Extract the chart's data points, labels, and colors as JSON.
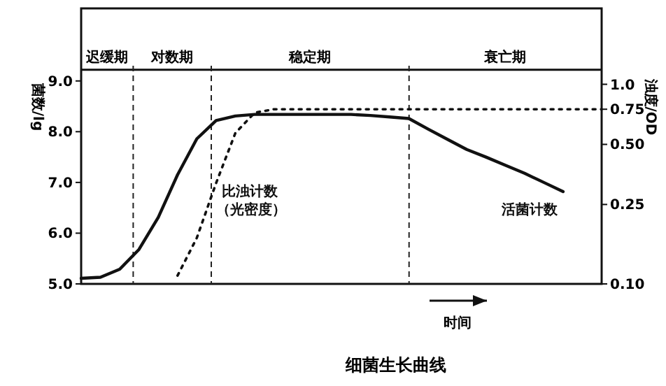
{
  "chart_data": {
    "type": "line",
    "title": "细菌生长曲线",
    "xlabel": "时间",
    "ylabel": "菌数/lg",
    "y2label": "浊度/OD",
    "categories": [
      null,
      null,
      null,
      null,
      null,
      null,
      null,
      null,
      null,
      null,
      null,
      null,
      null,
      null,
      null,
      null,
      null,
      null,
      null,
      null,
      null,
      null,
      null,
      null,
      null,
      null,
      null,
      null
    ],
    "ylim": [
      5,
      10.43
    ],
    "yticks": [
      {
        "value": 5,
        "label": "5.0"
      },
      {
        "value": 6,
        "label": "6.0"
      },
      {
        "value": 7,
        "label": "7.0"
      },
      {
        "value": 8,
        "label": "8.0"
      },
      {
        "value": 9,
        "label": "9.0"
      }
    ],
    "y2lim": [
      0.1,
      2.4
    ],
    "y2ticks": [
      {
        "value": 0.1,
        "label": "0.10"
      },
      {
        "value": 0.25,
        "label": "0.25"
      },
      {
        "value": 0.5,
        "label": "0.50"
      },
      {
        "value": 0.75,
        "label": "0.75"
      },
      {
        "value": 1,
        "label": "1.0"
      }
    ],
    "ref_lines": [
      {
        "axis": "y",
        "value": 9.22,
        "color": "#111111",
        "line_style": "solid"
      }
    ],
    "log": "y2",
    "grid": false,
    "marker": "none",
    "annotations": [
      "迟缓期",
      "对数期",
      "稳定期",
      "衰亡期"
    ],
    "series": [
      {
        "name": "活菌计数",
        "color": "#111111",
        "line_style": "solid",
        "values": [
          5.11,
          5.13,
          5.29,
          5.68,
          6.31,
          7.15,
          7.86,
          8.22,
          8.31,
          8.34,
          8.34,
          8.34,
          8.34,
          8.34,
          8.34,
          8.32,
          8.29,
          8.26,
          8.05,
          7.85,
          7.65,
          7.5,
          7.34,
          7.18,
          7.0,
          6.82,
          null,
          null
        ]
      },
      {
        "name": "比浊计数（光密度）",
        "color": "#111111",
        "line_style": "dotted",
        "axis": "y2",
        "values": [
          null,
          null,
          null,
          null,
          null,
          0.11,
          0.17,
          0.32,
          0.57,
          0.72,
          0.75,
          0.75,
          0.75,
          0.75,
          0.75,
          0.75,
          0.75,
          0.75,
          0.75,
          0.75,
          0.75,
          0.75,
          0.75,
          0.75,
          0.75,
          0.75,
          0.75,
          0.75
        ]
      }
    ]
  }
}
